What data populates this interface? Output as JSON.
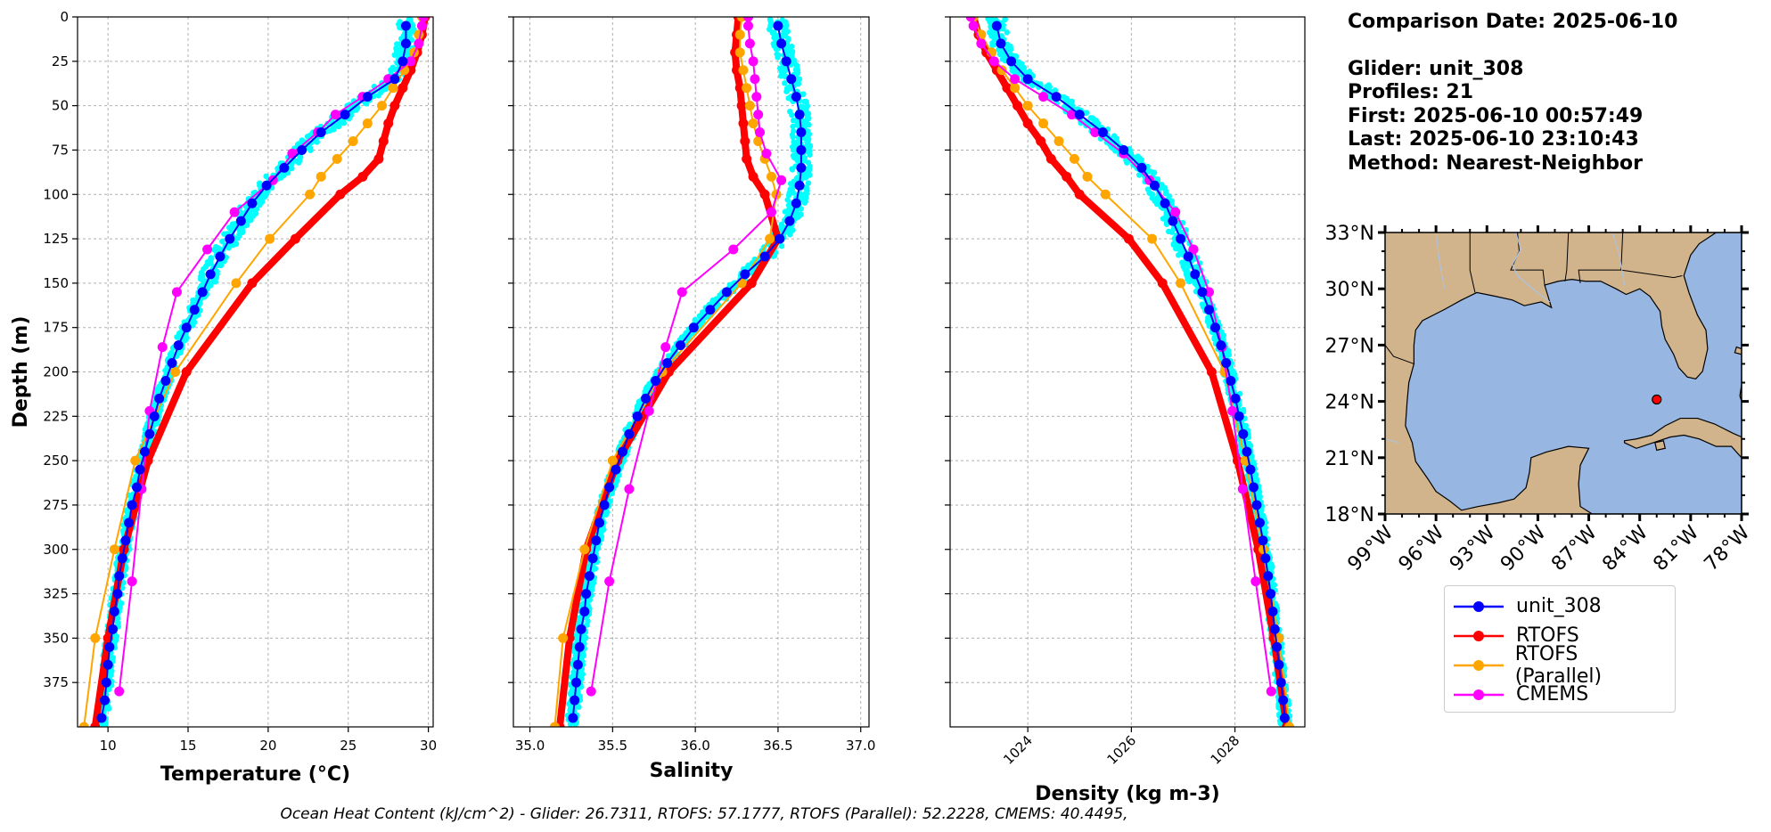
{
  "info": {
    "comparison_date": "Comparison Date: 2025-06-10",
    "glider": "Glider: unit_308",
    "profiles": "Profiles: 21",
    "first": "First: 2025-06-10 00:57:49",
    "last": "Last: 2025-06-10 23:10:43",
    "method": "Method: Nearest-Neighbor"
  },
  "footer": {
    "ohc_text": "Ocean Heat Content (kJ/cm^2) - Glider: 26.7311,  RTOFS: 57.1777,  RTOFS (Parallel): 52.2228,  CMEMS: 40.4495,"
  },
  "legend": [
    {
      "name": "unit_308",
      "color": "#0000ff"
    },
    {
      "name": "RTOFS",
      "color": "#ff0000"
    },
    {
      "name": "RTOFS (Parallel)",
      "color": "#ffa500"
    },
    {
      "name": "CMEMS",
      "color": "#ff00ff"
    }
  ],
  "map": {
    "lon_ticks": [
      "99°W",
      "96°W",
      "93°W",
      "90°W",
      "87°W",
      "84°W",
      "81°W",
      "78°W"
    ],
    "lat_ticks": [
      "33°N",
      "30°N",
      "27°N",
      "24°N",
      "21°N",
      "18°N"
    ],
    "lon_range": [
      -99,
      -78
    ],
    "lat_range": [
      18,
      33
    ],
    "glider_position": {
      "lon": -83.0,
      "lat": 24.1
    },
    "land_color": "#d2b48c",
    "ocean_color": "#97b6e1"
  },
  "chart_data": [
    {
      "type": "line",
      "id": "temperature",
      "xlabel": "Temperature (°C)",
      "ylabel": "Depth (m)",
      "xlim": [
        8.1,
        30.3
      ],
      "ylim": [
        400,
        0
      ],
      "x_ticks": [
        10,
        15,
        20,
        25,
        30
      ],
      "y_ticks": [
        0,
        25,
        50,
        75,
        100,
        125,
        150,
        175,
        200,
        225,
        250,
        275,
        300,
        325,
        350,
        375
      ],
      "grid": true,
      "series": [
        {
          "name": "unit_308",
          "color": "#0000ff",
          "depth": [
            5,
            15,
            25,
            35,
            45,
            55,
            65,
            75,
            85,
            95,
            105,
            115,
            125,
            135,
            145,
            155,
            165,
            175,
            185,
            195,
            205,
            215,
            225,
            235,
            245,
            255,
            265,
            275,
            285,
            295,
            305,
            315,
            325,
            335,
            345,
            355,
            365,
            375,
            385,
            395
          ],
          "values": [
            28.6,
            28.6,
            28.4,
            27.9,
            26.2,
            24.8,
            23.3,
            22.1,
            21.0,
            19.9,
            19.0,
            18.3,
            17.6,
            17.0,
            16.4,
            15.9,
            15.4,
            14.9,
            14.4,
            14.0,
            13.6,
            13.2,
            12.9,
            12.6,
            12.3,
            12.0,
            11.8,
            11.5,
            11.3,
            11.1,
            10.9,
            10.7,
            10.6,
            10.4,
            10.3,
            10.1,
            10.0,
            9.9,
            9.8,
            9.6
          ]
        },
        {
          "name": "RTOFS",
          "color": "#ff0000",
          "depth": [
            0,
            10,
            20,
            30,
            40,
            50,
            60,
            70,
            80,
            90,
            100,
            125,
            150,
            200,
            250,
            300,
            350,
            400
          ],
          "values": [
            29.8,
            29.6,
            29.3,
            28.9,
            28.4,
            27.9,
            27.5,
            27.2,
            26.9,
            25.9,
            24.5,
            21.7,
            19.0,
            14.9,
            12.5,
            11.0,
            10.0,
            9.2
          ]
        },
        {
          "name": "RTOFS (Parallel)",
          "color": "#ffa500",
          "depth": [
            0,
            10,
            20,
            30,
            40,
            50,
            60,
            70,
            80,
            90,
            100,
            125,
            150,
            200,
            250,
            300,
            350,
            400
          ],
          "values": [
            29.6,
            29.4,
            29.1,
            28.5,
            27.8,
            27.1,
            26.2,
            25.3,
            24.3,
            23.3,
            22.6,
            20.1,
            18.0,
            14.2,
            11.7,
            10.4,
            9.2,
            8.5
          ]
        },
        {
          "name": "CMEMS",
          "color": "#ff00ff",
          "depth": [
            0,
            5,
            15,
            25,
            35,
            45,
            55,
            65,
            77,
            92,
            110,
            131,
            155,
            186,
            222,
            266,
            318,
            380
          ],
          "values": [
            29.7,
            29.6,
            29.4,
            28.9,
            27.5,
            25.9,
            24.2,
            23.1,
            21.5,
            20.3,
            17.9,
            16.2,
            14.3,
            13.4,
            12.6,
            12.1,
            11.5,
            10.7
          ]
        }
      ]
    },
    {
      "type": "line",
      "id": "salinity",
      "xlabel": "Salinity",
      "ylabel": "",
      "xlim": [
        34.9,
        37.05
      ],
      "ylim": [
        400,
        0
      ],
      "x_ticks": [
        35.0,
        35.5,
        36.0,
        36.5,
        37.0
      ],
      "grid": true,
      "series": [
        {
          "name": "unit_308",
          "color": "#0000ff",
          "depth": [
            5,
            15,
            25,
            35,
            45,
            55,
            65,
            75,
            85,
            95,
            105,
            115,
            125,
            135,
            145,
            155,
            165,
            175,
            185,
            195,
            205,
            215,
            225,
            235,
            245,
            255,
            265,
            275,
            285,
            295,
            305,
            315,
            325,
            335,
            345,
            355,
            365,
            375,
            385,
            395
          ],
          "values": [
            36.5,
            36.52,
            36.55,
            36.58,
            36.61,
            36.63,
            36.64,
            36.64,
            36.64,
            36.63,
            36.61,
            36.57,
            36.51,
            36.42,
            36.3,
            36.19,
            36.09,
            35.99,
            35.91,
            35.83,
            35.76,
            35.7,
            35.65,
            35.6,
            35.56,
            35.52,
            35.48,
            35.45,
            35.42,
            35.4,
            35.38,
            35.36,
            35.34,
            35.33,
            35.31,
            35.3,
            35.29,
            35.28,
            35.27,
            35.26
          ]
        },
        {
          "name": "RTOFS",
          "color": "#ff0000",
          "depth": [
            0,
            10,
            20,
            30,
            40,
            50,
            60,
            70,
            80,
            90,
            100,
            125,
            150,
            200,
            250,
            300,
            350,
            400
          ],
          "values": [
            36.26,
            36.25,
            36.24,
            36.25,
            36.27,
            36.28,
            36.29,
            36.3,
            36.31,
            36.35,
            36.42,
            36.5,
            36.34,
            35.84,
            35.53,
            35.34,
            35.24,
            35.18
          ]
        },
        {
          "name": "RTOFS (Parallel)",
          "color": "#ffa500",
          "depth": [
            0,
            10,
            20,
            30,
            40,
            50,
            60,
            70,
            80,
            90,
            100,
            125,
            150,
            200,
            250,
            300,
            350,
            400
          ],
          "values": [
            36.28,
            36.27,
            36.27,
            36.29,
            36.31,
            36.33,
            36.35,
            36.38,
            36.42,
            36.46,
            36.49,
            36.45,
            36.28,
            35.8,
            35.5,
            35.33,
            35.2,
            35.15
          ]
        },
        {
          "name": "CMEMS",
          "color": "#ff00ff",
          "depth": [
            0,
            5,
            15,
            25,
            35,
            45,
            55,
            65,
            77,
            92,
            110,
            131,
            155,
            186,
            222,
            266,
            318,
            380
          ],
          "values": [
            36.32,
            36.32,
            36.33,
            36.35,
            36.36,
            36.37,
            36.38,
            36.39,
            36.43,
            36.52,
            36.46,
            36.23,
            35.92,
            35.82,
            35.72,
            35.6,
            35.48,
            35.37
          ]
        }
      ]
    },
    {
      "type": "line",
      "id": "density",
      "xlabel": "Density (kg m-3)",
      "ylabel": "",
      "xlim": [
        1022.5,
        1029.35
      ],
      "ylim": [
        400,
        0
      ],
      "x_ticks": [
        1024,
        1026,
        1028
      ],
      "grid": true,
      "series": [
        {
          "name": "unit_308",
          "color": "#0000ff",
          "depth": [
            5,
            15,
            25,
            35,
            45,
            55,
            65,
            75,
            85,
            95,
            105,
            115,
            125,
            135,
            145,
            155,
            165,
            175,
            185,
            195,
            205,
            215,
            225,
            235,
            245,
            255,
            265,
            275,
            285,
            295,
            305,
            315,
            325,
            335,
            345,
            355,
            365,
            375,
            385,
            395
          ],
          "values": [
            1023.4,
            1023.48,
            1023.68,
            1024.0,
            1024.55,
            1025.0,
            1025.45,
            1025.85,
            1026.2,
            1026.45,
            1026.65,
            1026.8,
            1026.95,
            1027.1,
            1027.23,
            1027.37,
            1027.5,
            1027.62,
            1027.73,
            1027.83,
            1027.92,
            1028.01,
            1028.08,
            1028.16,
            1028.23,
            1028.3,
            1028.36,
            1028.42,
            1028.48,
            1028.54,
            1028.59,
            1028.64,
            1028.69,
            1028.73,
            1028.77,
            1028.81,
            1028.85,
            1028.89,
            1028.93,
            1028.96
          ]
        },
        {
          "name": "RTOFS",
          "color": "#ff0000",
          "depth": [
            0,
            10,
            20,
            30,
            40,
            50,
            60,
            70,
            80,
            90,
            100,
            125,
            150,
            200,
            250,
            300,
            350,
            400
          ],
          "values": [
            1022.95,
            1023.05,
            1023.2,
            1023.4,
            1023.6,
            1023.8,
            1024.0,
            1024.25,
            1024.45,
            1024.75,
            1025.0,
            1025.95,
            1026.6,
            1027.55,
            1028.05,
            1028.45,
            1028.75,
            1029.0
          ]
        },
        {
          "name": "RTOFS (Parallel)",
          "color": "#ffa500",
          "depth": [
            0,
            10,
            20,
            30,
            40,
            50,
            60,
            70,
            80,
            90,
            100,
            125,
            150,
            200,
            250,
            300,
            350,
            400
          ],
          "values": [
            1022.95,
            1023.1,
            1023.3,
            1023.5,
            1023.75,
            1024.0,
            1024.3,
            1024.6,
            1024.9,
            1025.15,
            1025.5,
            1026.4,
            1026.95,
            1027.8,
            1028.2,
            1028.55,
            1028.85,
            1029.05
          ]
        },
        {
          "name": "CMEMS",
          "color": "#ff00ff",
          "depth": [
            0,
            5,
            15,
            25,
            35,
            45,
            55,
            65,
            77,
            92,
            110,
            131,
            155,
            186,
            222,
            266,
            318,
            380
          ],
          "values": [
            1022.9,
            1022.95,
            1023.1,
            1023.35,
            1023.75,
            1024.3,
            1024.85,
            1025.3,
            1025.85,
            1026.35,
            1026.85,
            1027.2,
            1027.5,
            1027.75,
            1027.95,
            1028.15,
            1028.4,
            1028.7
          ]
        }
      ]
    }
  ]
}
